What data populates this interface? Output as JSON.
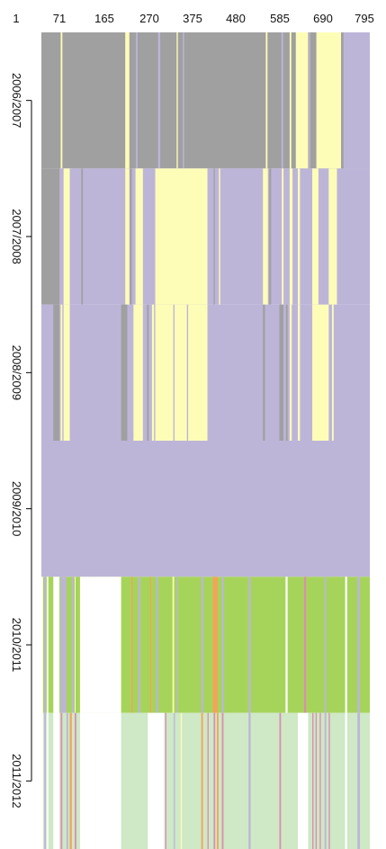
{
  "chart_data": {
    "type": "heatmap",
    "title": "",
    "xlabel": "",
    "ylabel": "",
    "x_tick_labels": [
      "1",
      "71",
      "165",
      "270",
      "375",
      "480",
      "585",
      "690",
      "795"
    ],
    "x_ticks": [
      1,
      71,
      165,
      270,
      375,
      480,
      585,
      690,
      795
    ],
    "xlim": [
      1,
      800
    ],
    "y_tick_labels": [
      "2006/2007",
      "2007/2008",
      "2008/2009",
      "2009/2010",
      "2010/2011",
      "2011/2012"
    ],
    "grid": false,
    "legend": false,
    "colors": {
      "gray": "#a0a0a0",
      "lavender": "#bdb5d8",
      "yellow": "#fdfdb8",
      "green": "#a6d45a",
      "lightgreen": "#cfe8c6",
      "orange": "#f3a45a",
      "pink": "#d98fb0",
      "white": "#ffffff"
    },
    "rows": [
      {
        "label": "2006/2007",
        "base": "gray",
        "segments": [
          {
            "from": 48,
            "to": 52,
            "color": "yellow"
          },
          {
            "from": 205,
            "to": 215,
            "color": "yellow"
          },
          {
            "from": 231,
            "to": 235,
            "color": "lavender"
          },
          {
            "from": 285,
            "to": 290,
            "color": "lavender"
          },
          {
            "from": 330,
            "to": 333,
            "color": "yellow"
          },
          {
            "from": 345,
            "to": 348,
            "color": "lavender"
          },
          {
            "from": 547,
            "to": 551,
            "color": "yellow"
          },
          {
            "from": 585,
            "to": 589,
            "color": "lavender"
          },
          {
            "from": 605,
            "to": 609,
            "color": "yellow"
          },
          {
            "from": 620,
            "to": 650,
            "color": "yellow"
          },
          {
            "from": 652,
            "to": 655,
            "color": "lavender"
          },
          {
            "from": 670,
            "to": 730,
            "color": "yellow"
          },
          {
            "from": 732,
            "to": 735,
            "color": "gray"
          },
          {
            "from": 736,
            "to": 800,
            "color": "lavender"
          }
        ]
      },
      {
        "label": "2007/2008",
        "base": "lavender",
        "segments": [
          {
            "from": 1,
            "to": 45,
            "color": "gray"
          },
          {
            "from": 55,
            "to": 70,
            "color": "yellow"
          },
          {
            "from": 98,
            "to": 102,
            "color": "gray"
          },
          {
            "from": 205,
            "to": 215,
            "color": "yellow"
          },
          {
            "from": 216,
            "to": 221,
            "color": "gray"
          },
          {
            "from": 230,
            "to": 248,
            "color": "yellow"
          },
          {
            "from": 278,
            "to": 405,
            "color": "yellow"
          },
          {
            "from": 420,
            "to": 423,
            "color": "gray"
          },
          {
            "from": 433,
            "to": 436,
            "color": "yellow"
          },
          {
            "from": 540,
            "to": 552,
            "color": "yellow"
          },
          {
            "from": 555,
            "to": 560,
            "color": "gray"
          },
          {
            "from": 586,
            "to": 590,
            "color": "yellow"
          },
          {
            "from": 605,
            "to": 612,
            "color": "yellow"
          },
          {
            "from": 625,
            "to": 630,
            "color": "yellow"
          },
          {
            "from": 660,
            "to": 675,
            "color": "yellow"
          },
          {
            "from": 700,
            "to": 720,
            "color": "yellow"
          }
        ]
      },
      {
        "label": "2008/2009",
        "base": "lavender",
        "segments": [
          {
            "from": 30,
            "to": 45,
            "color": "gray"
          },
          {
            "from": 48,
            "to": 52,
            "color": "yellow"
          },
          {
            "from": 55,
            "to": 70,
            "color": "yellow"
          },
          {
            "from": 195,
            "to": 210,
            "color": "gray"
          },
          {
            "from": 225,
            "to": 248,
            "color": "yellow"
          },
          {
            "from": 258,
            "to": 262,
            "color": "gray"
          },
          {
            "from": 270,
            "to": 275,
            "color": "yellow"
          },
          {
            "from": 278,
            "to": 405,
            "color": "yellow"
          },
          {
            "from": 322,
            "to": 325,
            "color": "lavender"
          },
          {
            "from": 355,
            "to": 358,
            "color": "lavender"
          },
          {
            "from": 540,
            "to": 545,
            "color": "gray"
          },
          {
            "from": 580,
            "to": 590,
            "color": "gray"
          },
          {
            "from": 596,
            "to": 600,
            "color": "gray"
          },
          {
            "from": 605,
            "to": 610,
            "color": "yellow"
          },
          {
            "from": 625,
            "to": 630,
            "color": "yellow"
          },
          {
            "from": 660,
            "to": 700,
            "color": "yellow"
          },
          {
            "from": 708,
            "to": 712,
            "color": "yellow"
          }
        ]
      },
      {
        "label": "2009/2010",
        "base": "lavender",
        "segments": []
      },
      {
        "label": "2010/2011",
        "base": "green",
        "segments": [
          {
            "from": 1,
            "to": 5,
            "color": "white"
          },
          {
            "from": 8,
            "to": 12,
            "color": "lavender"
          },
          {
            "from": 14,
            "to": 18,
            "color": "white"
          },
          {
            "from": 30,
            "to": 45,
            "color": "white"
          },
          {
            "from": 48,
            "to": 62,
            "color": "lavender"
          },
          {
            "from": 75,
            "to": 80,
            "color": "lavender"
          },
          {
            "from": 82,
            "to": 84,
            "color": "yellow"
          },
          {
            "from": 95,
            "to": 195,
            "color": "white"
          },
          {
            "from": 220,
            "to": 223,
            "color": "orange"
          },
          {
            "from": 237,
            "to": 242,
            "color": "lavender"
          },
          {
            "from": 265,
            "to": 268,
            "color": "orange"
          },
          {
            "from": 280,
            "to": 285,
            "color": "lavender"
          },
          {
            "from": 320,
            "to": 324,
            "color": "yellow"
          },
          {
            "from": 330,
            "to": 333,
            "color": "lavender"
          },
          {
            "from": 390,
            "to": 395,
            "color": "lavender"
          },
          {
            "from": 418,
            "to": 430,
            "color": "orange"
          },
          {
            "from": 440,
            "to": 445,
            "color": "lavender"
          },
          {
            "from": 505,
            "to": 510,
            "color": "lavender"
          },
          {
            "from": 595,
            "to": 600,
            "color": "white"
          },
          {
            "from": 640,
            "to": 645,
            "color": "pink"
          },
          {
            "from": 690,
            "to": 694,
            "color": "lavender"
          },
          {
            "from": 740,
            "to": 745,
            "color": "white"
          },
          {
            "from": 770,
            "to": 776,
            "color": "lavender"
          }
        ]
      },
      {
        "label": "2011/2012",
        "base": "lightgreen",
        "segments": [
          {
            "from": 1,
            "to": 5,
            "color": "white"
          },
          {
            "from": 8,
            "to": 12,
            "color": "lavender"
          },
          {
            "from": 14,
            "to": 18,
            "color": "white"
          },
          {
            "from": 30,
            "to": 45,
            "color": "white"
          },
          {
            "from": 48,
            "to": 52,
            "color": "pink"
          },
          {
            "from": 62,
            "to": 66,
            "color": "lavender"
          },
          {
            "from": 70,
            "to": 75,
            "color": "orange"
          },
          {
            "from": 82,
            "to": 86,
            "color": "pink"
          },
          {
            "from": 95,
            "to": 195,
            "color": "white"
          },
          {
            "from": 260,
            "to": 300,
            "color": "white"
          },
          {
            "from": 302,
            "to": 305,
            "color": "pink"
          },
          {
            "from": 323,
            "to": 326,
            "color": "lavender"
          },
          {
            "from": 340,
            "to": 343,
            "color": "yellow"
          },
          {
            "from": 390,
            "to": 394,
            "color": "orange"
          },
          {
            "from": 405,
            "to": 408,
            "color": "pink"
          },
          {
            "from": 420,
            "to": 424,
            "color": "pink"
          },
          {
            "from": 428,
            "to": 432,
            "color": "orange"
          },
          {
            "from": 440,
            "to": 444,
            "color": "pink"
          },
          {
            "from": 505,
            "to": 510,
            "color": "lavender"
          },
          {
            "from": 580,
            "to": 584,
            "color": "pink"
          },
          {
            "from": 625,
            "to": 650,
            "color": "white"
          },
          {
            "from": 660,
            "to": 663,
            "color": "pink"
          },
          {
            "from": 668,
            "to": 671,
            "color": "pink"
          },
          {
            "from": 678,
            "to": 681,
            "color": "pink"
          },
          {
            "from": 690,
            "to": 694,
            "color": "lavender"
          },
          {
            "from": 700,
            "to": 703,
            "color": "pink"
          },
          {
            "from": 740,
            "to": 745,
            "color": "white"
          },
          {
            "from": 770,
            "to": 776,
            "color": "lavender"
          }
        ]
      }
    ]
  }
}
